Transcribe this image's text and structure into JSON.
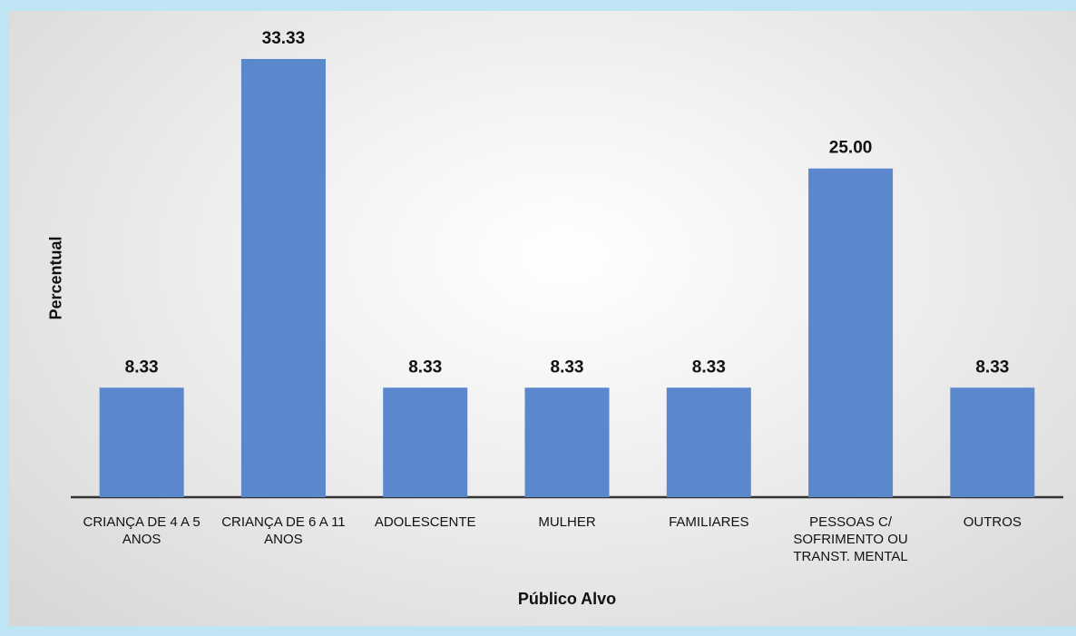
{
  "chart_data": {
    "type": "bar",
    "x_label": "Público Alvo",
    "y_label": "Percentual",
    "categories": [
      "CRIANÇA DE 4 A 5 ANOS",
      "CRIANÇA DE 6 A 11 ANOS",
      "ADOLESCENTE",
      "MULHER",
      "FAMILIARES",
      "PESSOAS C/ SOFRIMENTO OU TRANST. MENTAL",
      "OUTROS"
    ],
    "values": [
      8.33,
      33.33,
      8.33,
      8.33,
      8.33,
      25.0,
      8.33
    ],
    "value_labels": [
      "8.33",
      "33.33",
      "8.33",
      "8.33",
      "8.33",
      "25.00",
      "8.33"
    ],
    "color": "#5b87cc"
  }
}
